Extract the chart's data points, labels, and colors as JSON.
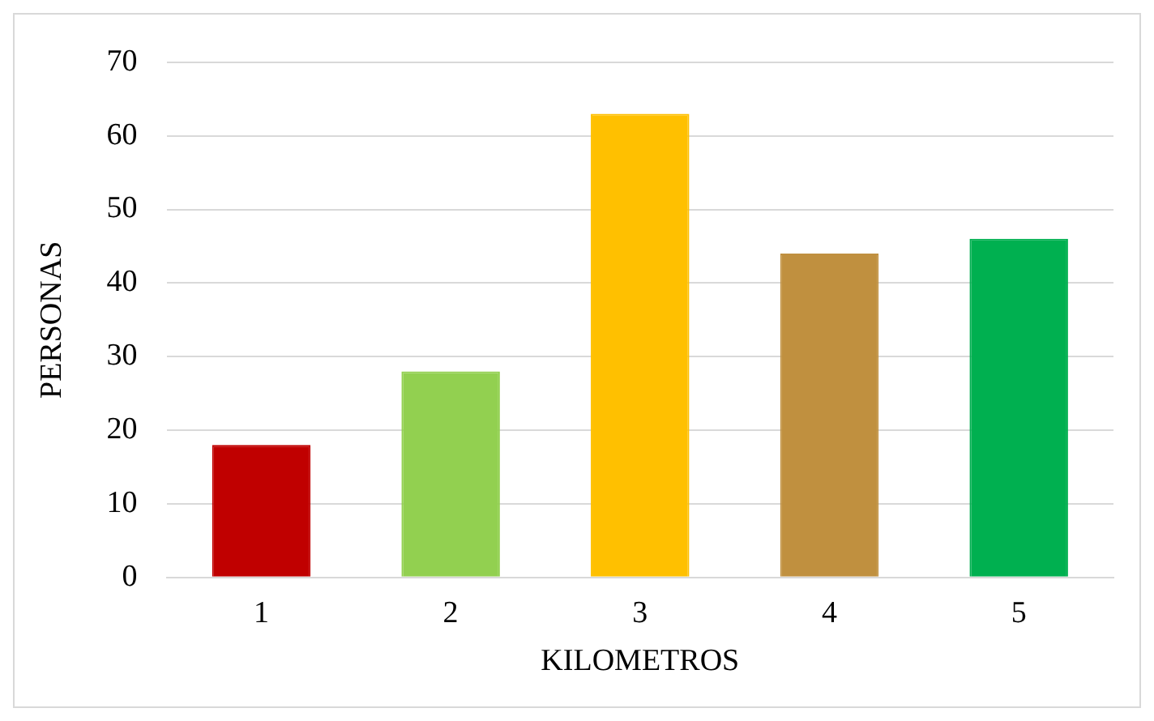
{
  "chart_data": {
    "type": "bar",
    "xlabel": "KILOMETROS",
    "ylabel": "PERSONAS",
    "categories": [
      "1",
      "2",
      "3",
      "4",
      "5"
    ],
    "values": [
      18,
      28,
      63,
      44,
      46
    ],
    "colors": [
      "#c00000",
      "#92d050",
      "#ffc000",
      "#c0903f",
      "#00b050"
    ],
    "ylim": [
      0,
      70
    ],
    "yticks": [
      0,
      10,
      20,
      30,
      40,
      50,
      60,
      70
    ],
    "grid": "y"
  }
}
